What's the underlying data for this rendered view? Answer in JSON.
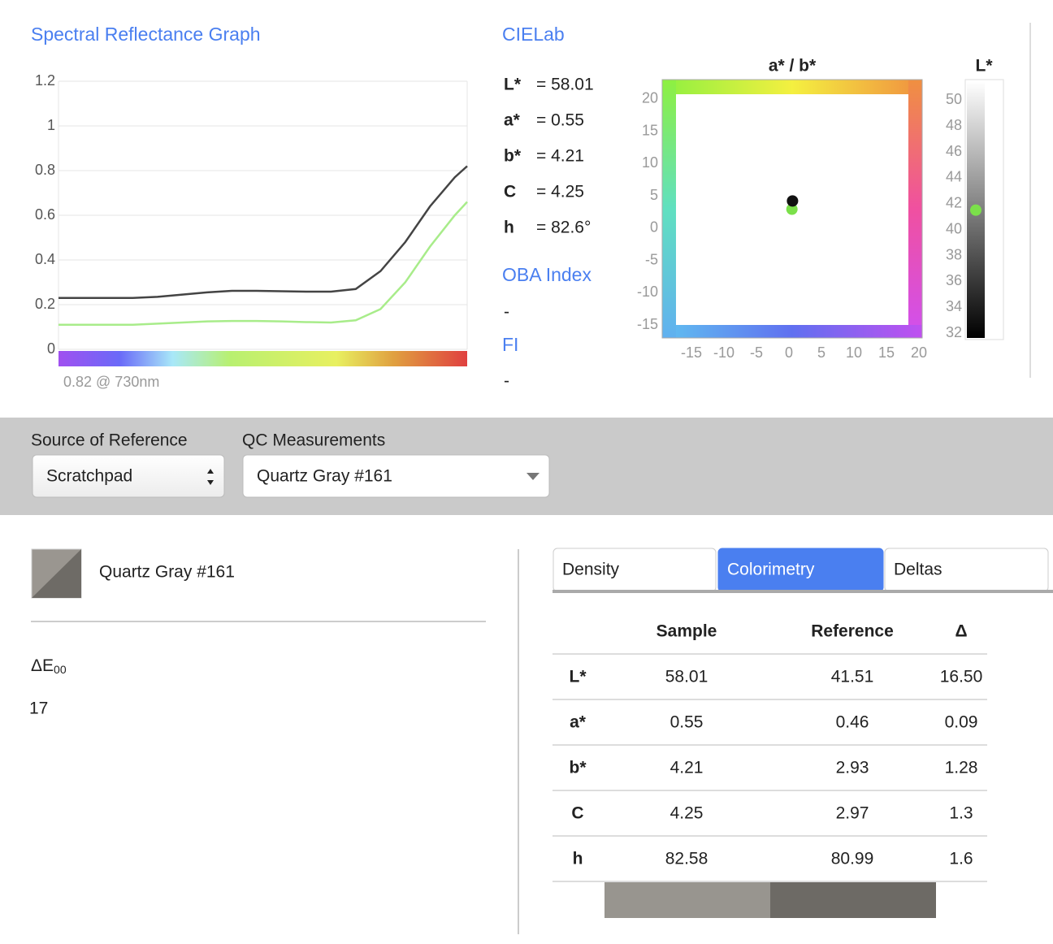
{
  "chart_data": [
    {
      "type": "line",
      "title": "Spectral Reflectance Graph",
      "note": "0.82 @ 730nm",
      "x": [
        400,
        420,
        440,
        460,
        480,
        500,
        520,
        540,
        560,
        580,
        600,
        620,
        640,
        660,
        680,
        700,
        720,
        730
      ],
      "xlim": [
        400,
        730
      ],
      "ylim": [
        0,
        1.2
      ],
      "yticks": [
        0,
        0.2,
        0.4,
        0.6,
        0.8,
        1,
        1.2
      ],
      "grid": true,
      "series": [
        {
          "color": "#444444",
          "values": [
            0.23,
            0.23,
            0.23,
            0.23,
            0.235,
            0.245,
            0.255,
            0.262,
            0.262,
            0.26,
            0.258,
            0.258,
            0.27,
            0.35,
            0.48,
            0.64,
            0.77,
            0.82
          ]
        },
        {
          "color": "#a8ec8a",
          "values": [
            0.11,
            0.11,
            0.11,
            0.11,
            0.115,
            0.12,
            0.125,
            0.127,
            0.127,
            0.125,
            0.122,
            0.12,
            0.13,
            0.18,
            0.3,
            0.46,
            0.6,
            0.66
          ]
        }
      ]
    },
    {
      "type": "scatter",
      "title": "a* / b*",
      "xlim": [
        -19.5,
        20.5
      ],
      "ylim": [
        -17,
        23
      ],
      "xticks": [
        -15,
        -10,
        -5,
        0,
        5,
        10,
        15,
        20
      ],
      "yticks": [
        -15,
        -10,
        -5,
        0,
        5,
        10,
        15,
        20
      ],
      "series": [
        {
          "color": "#7be04a",
          "x": [
            0.46
          ],
          "values": [
            2.93
          ]
        },
        {
          "color": "#111111",
          "x": [
            0.55
          ],
          "values": [
            4.21
          ]
        }
      ]
    },
    {
      "type": "strip",
      "title": "L*",
      "ylim": [
        31.5,
        51.6
      ],
      "yticks": [
        32,
        34,
        36,
        38,
        40,
        42,
        44,
        46,
        48,
        50
      ],
      "series": [
        {
          "color": "#7be04a",
          "values": [
            41.51
          ]
        }
      ]
    }
  ],
  "cielab": {
    "title": "CIELab",
    "rows": [
      {
        "label": "L*",
        "value": "= 58.01"
      },
      {
        "label": "a*",
        "value": "= 0.55"
      },
      {
        "label": "b*",
        "value": "= 4.21"
      },
      {
        "label": "C",
        "value": "= 4.25"
      },
      {
        "label": "h",
        "value": "= 82.6°"
      }
    ],
    "oba_title": "OBA Index",
    "oba_value": "-",
    "fi_title": "FI",
    "fi_value": "-"
  },
  "controls": {
    "source_label": "Source of Reference",
    "source_value": "Scratchpad",
    "qc_label": "QC Measurements",
    "qc_value": "Quartz Gray #161"
  },
  "sample": {
    "name": "Quartz Gray #161",
    "delta_label": "ΔE",
    "delta_sub": "00",
    "delta_value": "17"
  },
  "tabs": [
    "Density",
    "Colorimetry",
    "Deltas"
  ],
  "table": {
    "headers": [
      "Sample",
      "Reference",
      "Δ"
    ],
    "rows": [
      [
        "L*",
        "58.01",
        "41.51",
        "16.50"
      ],
      [
        "a*",
        "0.55",
        "0.46",
        "0.09"
      ],
      [
        "b*",
        "4.21",
        "2.93",
        "1.28"
      ],
      [
        "C",
        "4.25",
        "2.97",
        "1.3"
      ],
      [
        "h",
        "82.58",
        "80.99",
        "1.6"
      ]
    ]
  }
}
